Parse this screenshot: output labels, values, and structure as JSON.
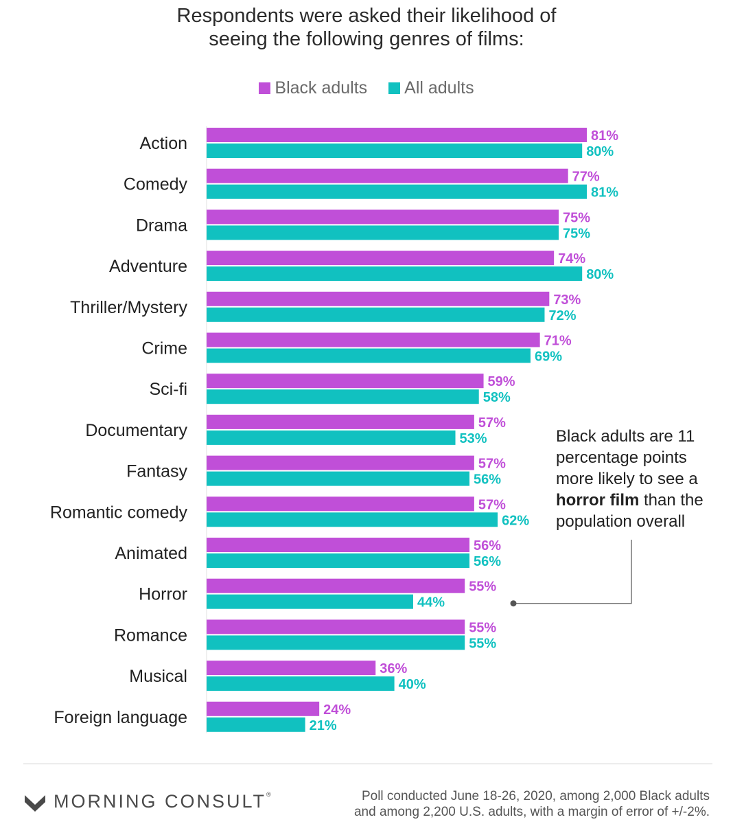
{
  "title_lines": [
    "Respondents were asked their likelihood of",
    "seeing the following genres of films:"
  ],
  "legend": {
    "black": {
      "label": "Black adults",
      "color": "#c04fd8"
    },
    "all": {
      "label": "All adults",
      "color": "#11c1c0"
    }
  },
  "annotation": {
    "line1": "Black adults are 11",
    "line2": "percentage points",
    "line3": "more likely to see a",
    "bold": "horror film",
    "line4_rest": " than the",
    "line5": "population overall"
  },
  "chart_data": {
    "type": "bar",
    "orientation": "horizontal",
    "title": "Respondents were asked their likelihood of seeing the following genres of films:",
    "categories": [
      "Action",
      "Comedy",
      "Drama",
      "Adventure",
      "Thriller/Mystery",
      "Crime",
      "Sci-fi",
      "Documentary",
      "Fantasy",
      "Romantic comedy",
      "Animated",
      "Horror",
      "Romance",
      "Musical",
      "Foreign language"
    ],
    "series": [
      {
        "name": "Black adults",
        "color": "#c04fd8",
        "values": [
          81,
          77,
          75,
          74,
          73,
          71,
          59,
          57,
          57,
          57,
          56,
          55,
          55,
          36,
          24
        ],
        "labels": [
          "81%",
          "77%",
          "75%",
          "74%",
          "73%",
          "71%",
          "59%",
          "57%",
          "57%",
          "57%",
          "56%",
          "55%",
          "55%",
          "36%",
          "24%"
        ]
      },
      {
        "name": "All adults",
        "color": "#11c1c0",
        "values": [
          80,
          81,
          75,
          80,
          72,
          69,
          58,
          53,
          56,
          62,
          56,
          44,
          55,
          40,
          21
        ],
        "labels": [
          "80%",
          "81%",
          "75%",
          "80%",
          "72%",
          "69%",
          "58%",
          "53%",
          "56%",
          "62%",
          "56%",
          "44%",
          "55%",
          "40%",
          "21%"
        ]
      }
    ],
    "xlim": [
      0,
      100
    ],
    "grid": false,
    "legend_position": "top-center"
  },
  "footer": {
    "brand": "MORNING CONSULT",
    "brand_mark": "®",
    "note_line1": "Poll conducted June 18-26, 2020, among 2,000 Black adults",
    "note_line2": "and among 2,200 U.S. adults, with a margin of error of +/-2%."
  }
}
